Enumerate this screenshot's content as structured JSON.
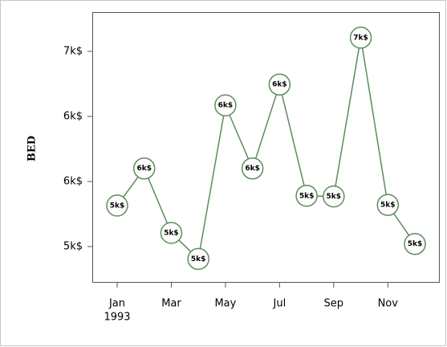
{
  "chart_data": {
    "type": "line",
    "y_label": "BED",
    "categories": [
      "Jan",
      null,
      "Mar",
      null,
      "May",
      null,
      "Jul",
      null,
      "Sep",
      null,
      "Nov",
      null
    ],
    "x_year_label": "1993",
    "series": [
      {
        "name": "BED",
        "color": "#5b8c5b",
        "values": [
          5315,
          5600,
          5105,
          4905,
          6085,
          5600,
          6245,
          5390,
          5385,
          6605,
          5320,
          5020
        ],
        "value_labels": [
          "5k$",
          "6k$",
          "5k$",
          "5k$",
          "6k$",
          "6k$",
          "6k$",
          "5k$",
          "5k$",
          "7k$",
          "5k$",
          "5k$"
        ]
      }
    ],
    "ylim": [
      4722,
      6802
    ],
    "yticks": [
      {
        "value": 5000,
        "label": "5k$"
      },
      {
        "value": 5500,
        "label": "6k$"
      },
      {
        "value": 6000,
        "label": "6k$"
      },
      {
        "value": 6500,
        "label": "7k$"
      }
    ]
  }
}
